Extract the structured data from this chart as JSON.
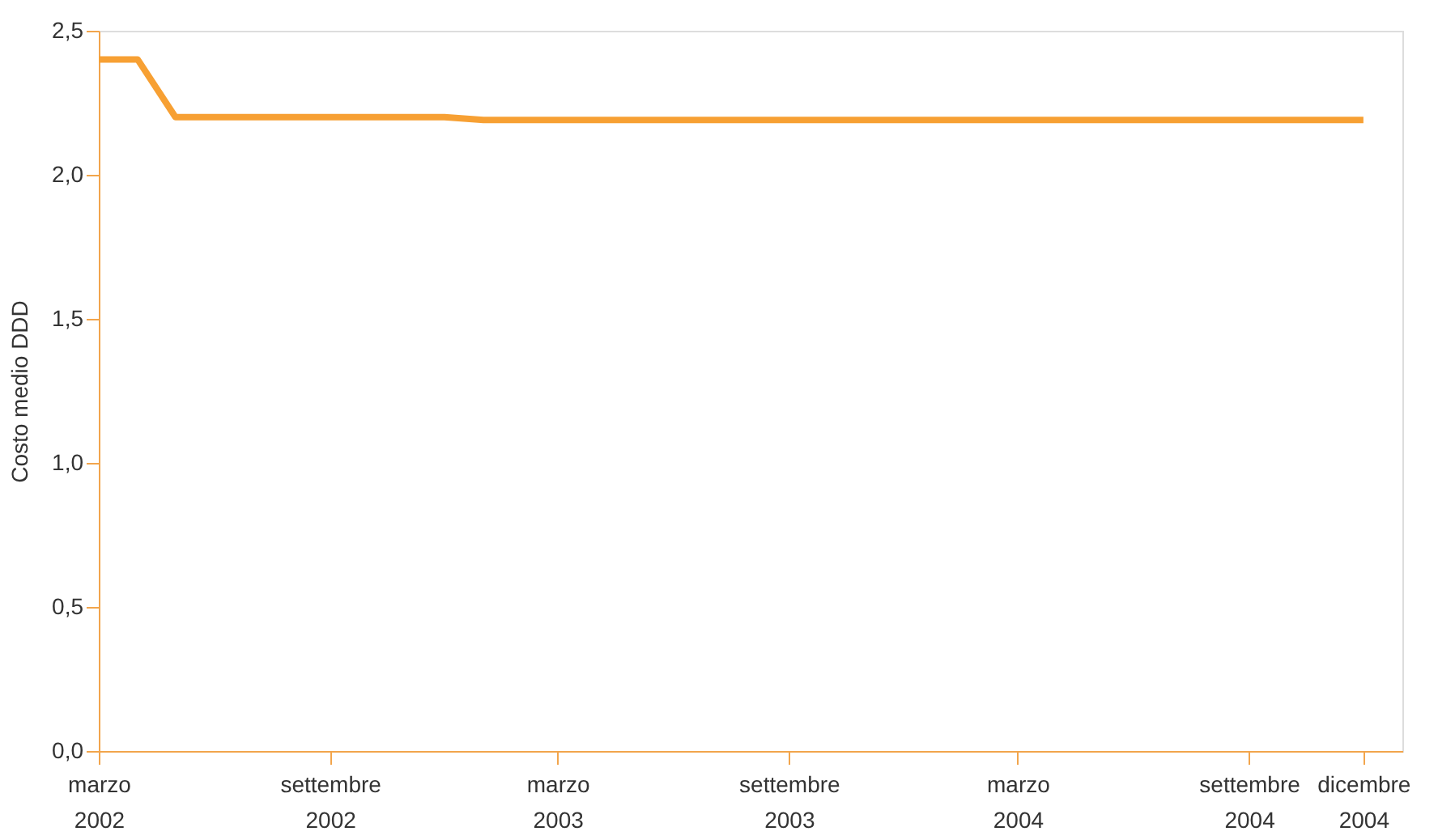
{
  "chart_data": {
    "type": "line",
    "ylabel": "Costo medio DDD",
    "x": [
      "2002-03",
      "2002-04",
      "2002-05",
      "2002-06",
      "2002-07",
      "2002-08",
      "2002-09",
      "2002-10",
      "2002-11",
      "2002-12",
      "2003-01",
      "2003-02",
      "2003-03",
      "2003-04",
      "2003-05",
      "2003-06",
      "2003-07",
      "2003-08",
      "2003-09",
      "2003-10",
      "2003-11",
      "2003-12",
      "2004-01",
      "2004-02",
      "2004-03",
      "2004-04",
      "2004-05",
      "2004-06",
      "2004-07",
      "2004-08",
      "2004-09",
      "2004-10",
      "2004-11",
      "2004-12"
    ],
    "series": [
      {
        "color": "#f7a033",
        "values": [
          2.4,
          2.4,
          2.2,
          2.2,
          2.2,
          2.2,
          2.2,
          2.2,
          2.2,
          2.2,
          2.19,
          2.19,
          2.19,
          2.19,
          2.19,
          2.19,
          2.19,
          2.19,
          2.19,
          2.19,
          2.19,
          2.19,
          2.19,
          2.19,
          2.19,
          2.19,
          2.19,
          2.19,
          2.19,
          2.19,
          2.19,
          2.19,
          2.19,
          2.19
        ]
      }
    ],
    "xlim": [
      "2002-03",
      "2005-01"
    ],
    "xticks": [
      {
        "value": "2002-03",
        "label": "marzo 2002"
      },
      {
        "value": "2002-09",
        "label": "settembre 2002"
      },
      {
        "value": "2003-03",
        "label": "marzo 2003"
      },
      {
        "value": "2003-09",
        "label": "settembre 2003"
      },
      {
        "value": "2004-03",
        "label": "marzo 2004"
      },
      {
        "value": "2004-09",
        "label": "settembre 2004"
      },
      {
        "value": "2004-12",
        "label": "dicembre 2004"
      }
    ],
    "ylim": [
      0,
      2.5
    ],
    "yticks": [
      {
        "value": 0,
        "label": "0,0"
      },
      {
        "value": 0.5,
        "label": "0,5"
      },
      {
        "value": 1,
        "label": "1,0"
      },
      {
        "value": 1.5,
        "label": "1,5"
      },
      {
        "value": 2,
        "label": "2,0"
      },
      {
        "value": 2.5,
        "label": "2,5"
      }
    ],
    "grid": false,
    "line_style": "solid"
  }
}
